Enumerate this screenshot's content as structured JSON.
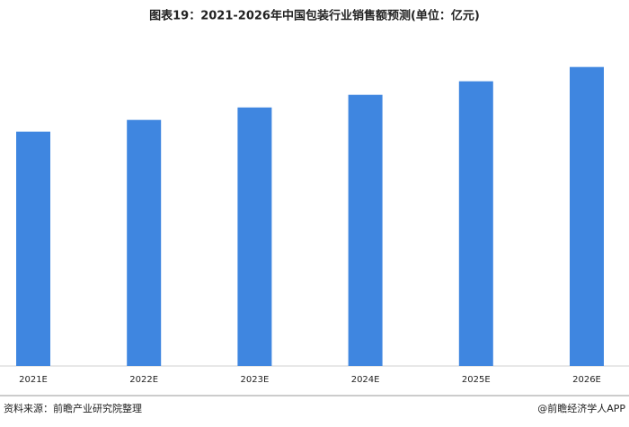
{
  "chart_data": {
    "type": "bar",
    "title": "图表19：2021-2026年中国包装行业销售额预测(单位：亿元)",
    "categories": [
      "2021E",
      "2022E",
      "2023E",
      "2024E",
      "2025E",
      "2026E"
    ],
    "values": [
      12800,
      13440,
      14120,
      14810,
      15550,
      16330
    ],
    "color": "#3f86e0",
    "ylim": [
      0,
      17000
    ],
    "source": "资料来源：前瞻产业研究院整理",
    "brand": "@前瞻经济学人APP"
  }
}
